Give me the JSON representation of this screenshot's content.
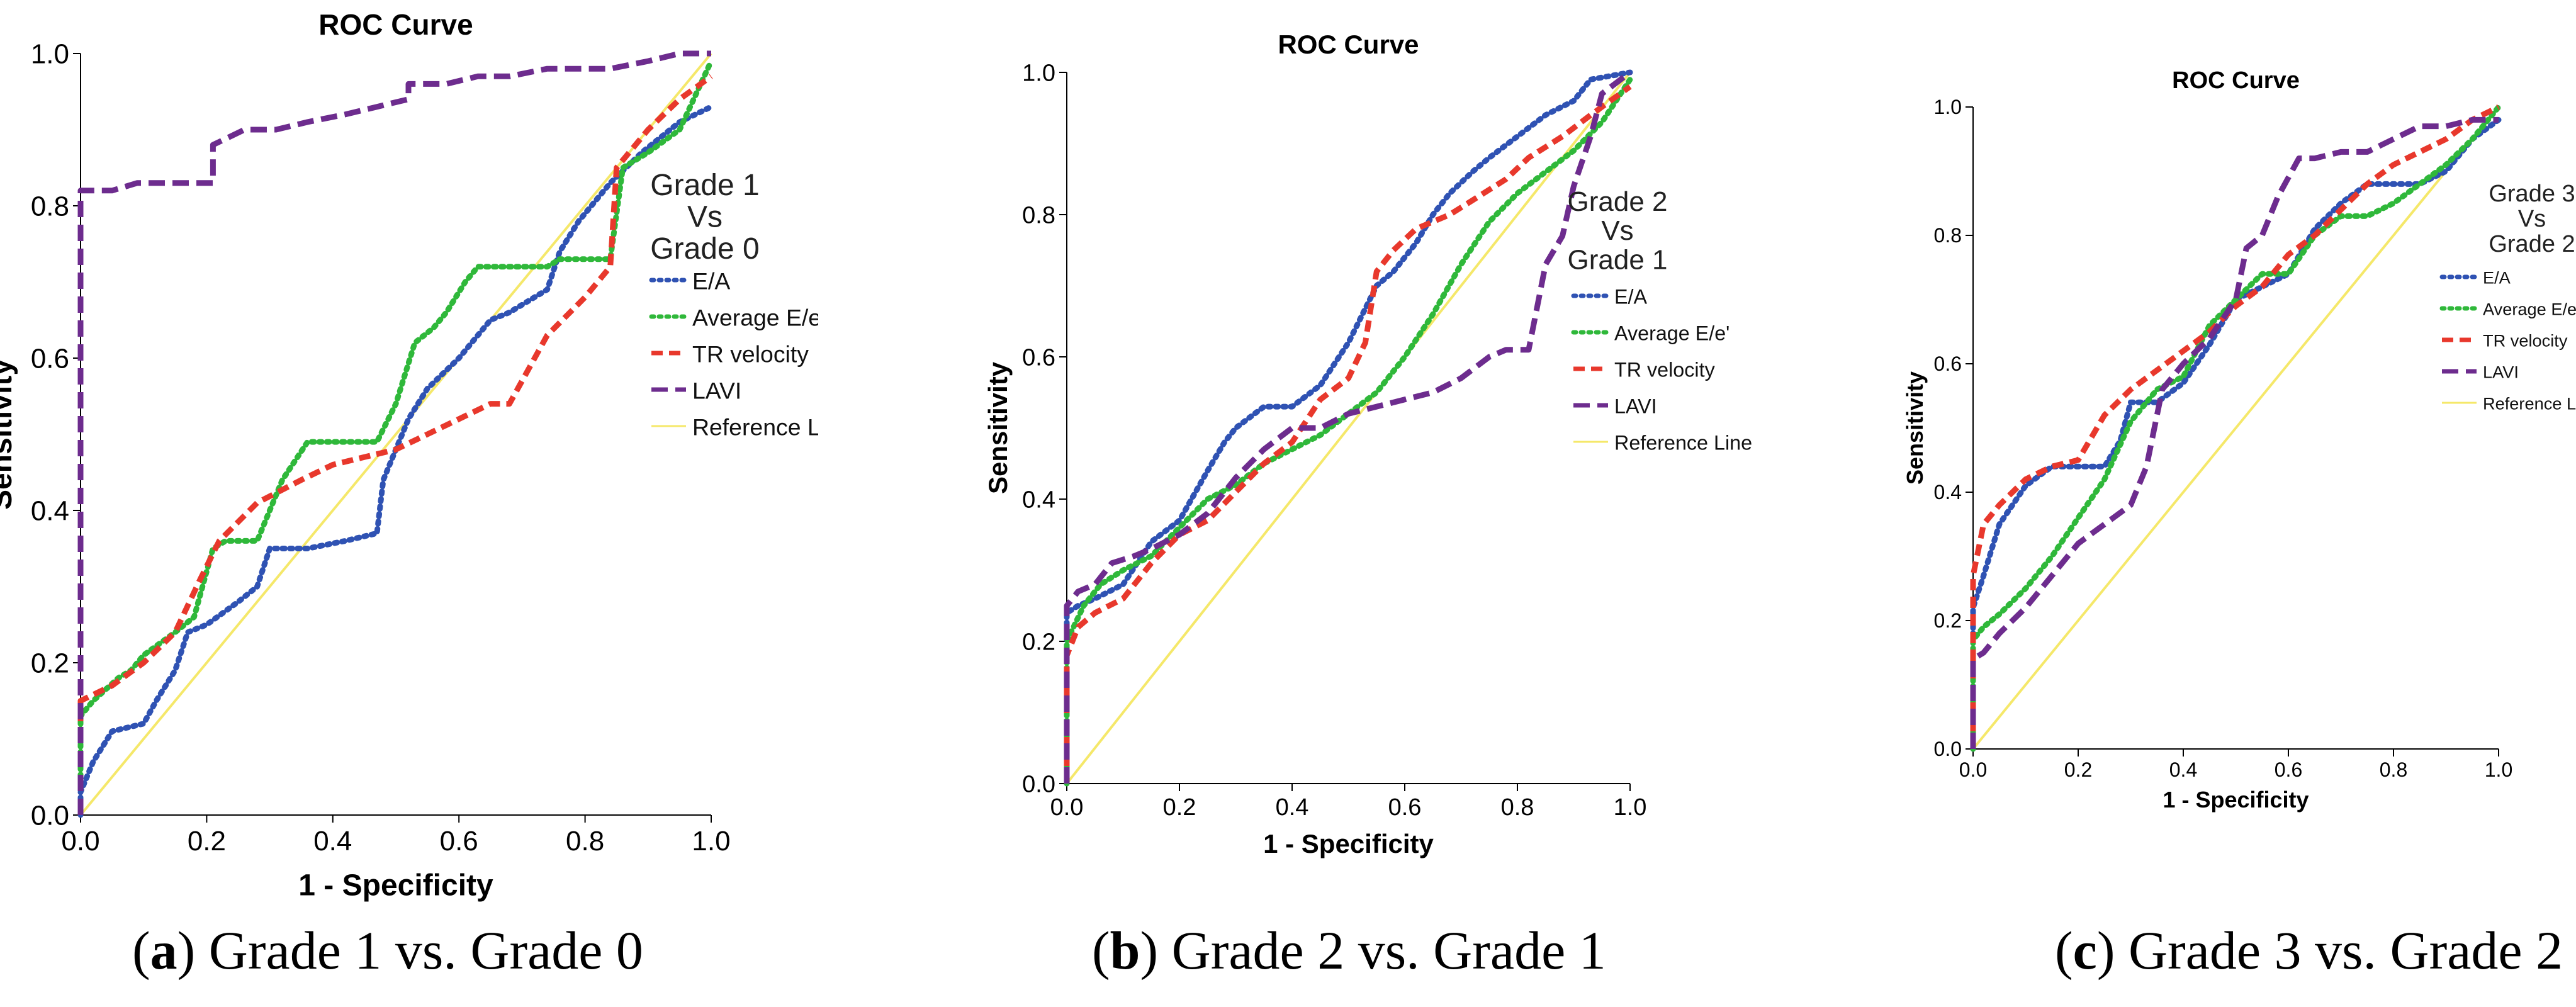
{
  "chart_data": [
    {
      "type": "line",
      "title": "ROC Curve",
      "xlabel": "1 - Specificity",
      "ylabel": "Sensitivity",
      "xlim": [
        0,
        1
      ],
      "ylim": [
        0,
        1
      ],
      "ticks": [
        "0.0",
        "0.2",
        "0.4",
        "0.6",
        "0.8",
        "1.0"
      ],
      "annotation": [
        "Grade 1",
        "Vs",
        "Grade 0"
      ],
      "legend_position": "right",
      "caption_letter": "a",
      "caption_text": ") Grade 1 vs. Grade 0",
      "series": [
        {
          "name": "E/A",
          "color": "#2f52b3",
          "dash": "dot",
          "x": [
            0,
            0,
            0.02,
            0.05,
            0.1,
            0.12,
            0.15,
            0.17,
            0.2,
            0.25,
            0.28,
            0.3,
            0.33,
            0.36,
            0.42,
            0.47,
            0.48,
            0.52,
            0.55,
            0.6,
            0.65,
            0.68,
            0.74,
            0.76,
            0.79,
            0.84,
            0.89,
            0.95,
            1.0
          ],
          "y": [
            0,
            0.03,
            0.07,
            0.11,
            0.12,
            0.15,
            0.19,
            0.24,
            0.25,
            0.28,
            0.3,
            0.35,
            0.35,
            0.35,
            0.36,
            0.37,
            0.44,
            0.52,
            0.56,
            0.6,
            0.65,
            0.66,
            0.69,
            0.74,
            0.78,
            0.83,
            0.87,
            0.91,
            0.93
          ]
        },
        {
          "name": "Average E/e'",
          "color": "#2fb83a",
          "dash": "dot",
          "x": [
            0,
            0,
            0.02,
            0.06,
            0.08,
            0.1,
            0.15,
            0.18,
            0.21,
            0.23,
            0.28,
            0.32,
            0.36,
            0.42,
            0.47,
            0.5,
            0.53,
            0.56,
            0.58,
            0.61,
            0.63,
            0.68,
            0.74,
            0.76,
            0.8,
            0.84,
            0.86,
            0.9,
            0.95,
            1.0
          ],
          "y": [
            0.05,
            0.13,
            0.15,
            0.18,
            0.19,
            0.21,
            0.24,
            0.26,
            0.35,
            0.36,
            0.36,
            0.44,
            0.49,
            0.49,
            0.49,
            0.54,
            0.62,
            0.64,
            0.66,
            0.7,
            0.72,
            0.72,
            0.72,
            0.73,
            0.73,
            0.73,
            0.85,
            0.87,
            0.9,
            0.99
          ]
        },
        {
          "name": "TR velocity",
          "color": "#e8382c",
          "dash": "dash",
          "x": [
            0,
            0,
            0.05,
            0.1,
            0.15,
            0.19,
            0.22,
            0.28,
            0.35,
            0.4,
            0.45,
            0.5,
            0.55,
            0.6,
            0.65,
            0.68,
            0.74,
            0.8,
            0.84,
            0.85,
            0.9,
            0.95,
            1.0
          ],
          "y": [
            0.1,
            0.15,
            0.17,
            0.2,
            0.24,
            0.31,
            0.36,
            0.41,
            0.44,
            0.46,
            0.47,
            0.48,
            0.5,
            0.52,
            0.54,
            0.54,
            0.63,
            0.68,
            0.72,
            0.85,
            0.9,
            0.94,
            0.97
          ]
        },
        {
          "name": "LAVI",
          "color": "#6d2c8e",
          "dash": "longdash",
          "x": [
            0,
            0,
            0.05,
            0.09,
            0.15,
            0.21,
            0.21,
            0.26,
            0.31,
            0.36,
            0.42,
            0.47,
            0.52,
            0.52,
            0.58,
            0.63,
            0.68,
            0.74,
            0.84,
            0.9,
            0.95,
            1.0
          ],
          "y": [
            0,
            0.82,
            0.82,
            0.83,
            0.83,
            0.83,
            0.88,
            0.9,
            0.9,
            0.91,
            0.92,
            0.93,
            0.94,
            0.96,
            0.96,
            0.97,
            0.97,
            0.98,
            0.98,
            0.99,
            1.0,
            1.0
          ]
        },
        {
          "name": "Reference Line",
          "color": "#f5e86a",
          "dash": "solid",
          "x": [
            0,
            1
          ],
          "y": [
            0,
            1
          ]
        }
      ]
    },
    {
      "type": "line",
      "title": "ROC Curve",
      "xlabel": "1 - Specificity",
      "ylabel": "Sensitivity",
      "xlim": [
        0,
        1
      ],
      "ylim": [
        0,
        1
      ],
      "ticks": [
        "0.0",
        "0.2",
        "0.4",
        "0.6",
        "0.8",
        "1.0"
      ],
      "annotation": [
        "Grade 2",
        "Vs",
        "Grade 1"
      ],
      "legend_position": "right",
      "caption_letter": "b",
      "caption_text": ") Grade 2 vs. Grade 1",
      "series": [
        {
          "name": "E/A",
          "color": "#2f52b3",
          "dash": "dot",
          "x": [
            0,
            0,
            0.02,
            0.05,
            0.1,
            0.15,
            0.2,
            0.25,
            0.28,
            0.3,
            0.35,
            0.38,
            0.4,
            0.45,
            0.5,
            0.55,
            0.58,
            0.62,
            0.65,
            0.68,
            0.72,
            0.75,
            0.8,
            0.85,
            0.9,
            0.93,
            1.0
          ],
          "y": [
            0,
            0.24,
            0.25,
            0.26,
            0.28,
            0.34,
            0.37,
            0.44,
            0.48,
            0.5,
            0.53,
            0.53,
            0.53,
            0.56,
            0.62,
            0.7,
            0.72,
            0.76,
            0.8,
            0.83,
            0.86,
            0.88,
            0.91,
            0.94,
            0.96,
            0.99,
            1.0
          ]
        },
        {
          "name": "Average E/e'",
          "color": "#2fb83a",
          "dash": "dot",
          "x": [
            0,
            0,
            0.03,
            0.06,
            0.1,
            0.15,
            0.2,
            0.25,
            0.3,
            0.35,
            0.4,
            0.45,
            0.5,
            0.55,
            0.6,
            0.65,
            0.7,
            0.75,
            0.8,
            0.85,
            0.9,
            0.95,
            1.0
          ],
          "y": [
            0,
            0.2,
            0.25,
            0.28,
            0.3,
            0.32,
            0.36,
            0.4,
            0.42,
            0.45,
            0.47,
            0.49,
            0.52,
            0.55,
            0.6,
            0.66,
            0.73,
            0.79,
            0.83,
            0.86,
            0.89,
            0.93,
            0.99
          ]
        },
        {
          "name": "TR velocity",
          "color": "#e8382c",
          "dash": "dash",
          "x": [
            0,
            0,
            0.02,
            0.05,
            0.1,
            0.15,
            0.2,
            0.25,
            0.3,
            0.35,
            0.4,
            0.45,
            0.5,
            0.53,
            0.55,
            0.58,
            0.62,
            0.68,
            0.72,
            0.78,
            0.82,
            0.88,
            0.93,
            1.0
          ],
          "y": [
            0,
            0.18,
            0.22,
            0.24,
            0.26,
            0.31,
            0.35,
            0.37,
            0.41,
            0.45,
            0.48,
            0.54,
            0.57,
            0.62,
            0.72,
            0.75,
            0.78,
            0.8,
            0.82,
            0.85,
            0.88,
            0.91,
            0.94,
            0.98
          ]
        },
        {
          "name": "LAVI",
          "color": "#6d2c8e",
          "dash": "longdash",
          "x": [
            0,
            0,
            0.02,
            0.05,
            0.08,
            0.12,
            0.15,
            0.2,
            0.25,
            0.3,
            0.35,
            0.4,
            0.45,
            0.5,
            0.55,
            0.6,
            0.65,
            0.7,
            0.75,
            0.78,
            0.82,
            0.85,
            0.88,
            0.9,
            0.93,
            0.95,
            1.0
          ],
          "y": [
            0,
            0.25,
            0.27,
            0.28,
            0.31,
            0.32,
            0.33,
            0.35,
            0.38,
            0.43,
            0.47,
            0.5,
            0.5,
            0.52,
            0.53,
            0.54,
            0.55,
            0.57,
            0.6,
            0.61,
            0.61,
            0.73,
            0.77,
            0.84,
            0.91,
            0.97,
            1.0
          ]
        },
        {
          "name": "Reference Line",
          "color": "#f5e86a",
          "dash": "solid",
          "x": [
            0,
            1
          ],
          "y": [
            0,
            1
          ]
        }
      ]
    },
    {
      "type": "line",
      "title": "ROC Curve",
      "xlabel": "1 - Specificity",
      "ylabel": "Sensitivity",
      "xlim": [
        0,
        1
      ],
      "ylim": [
        0,
        1
      ],
      "ticks": [
        "0.0",
        "0.2",
        "0.4",
        "0.6",
        "0.8",
        "1.0"
      ],
      "annotation": [
        "Grade 3",
        "Vs",
        "Grade 2"
      ],
      "legend_position": "right",
      "caption_letter": "c",
      "caption_text": ") Grade 3 vs. Grade 2",
      "series": [
        {
          "name": "E/A",
          "color": "#2f52b3",
          "dash": "dot",
          "x": [
            0,
            0,
            0.02,
            0.05,
            0.1,
            0.15,
            0.2,
            0.25,
            0.28,
            0.3,
            0.35,
            0.4,
            0.45,
            0.5,
            0.55,
            0.6,
            0.65,
            0.7,
            0.75,
            0.8,
            0.85,
            0.9,
            0.95,
            1.0
          ],
          "y": [
            0,
            0.22,
            0.27,
            0.35,
            0.41,
            0.44,
            0.44,
            0.44,
            0.48,
            0.54,
            0.54,
            0.57,
            0.63,
            0.7,
            0.72,
            0.74,
            0.81,
            0.85,
            0.88,
            0.88,
            0.88,
            0.9,
            0.95,
            0.98
          ]
        },
        {
          "name": "Average E/e'",
          "color": "#2fb83a",
          "dash": "dot",
          "x": [
            0,
            0,
            0.02,
            0.05,
            0.1,
            0.15,
            0.2,
            0.25,
            0.3,
            0.35,
            0.4,
            0.45,
            0.5,
            0.55,
            0.6,
            0.65,
            0.7,
            0.75,
            0.8,
            0.85,
            0.9,
            0.95,
            1.0
          ],
          "y": [
            0,
            0.17,
            0.19,
            0.21,
            0.25,
            0.3,
            0.36,
            0.42,
            0.51,
            0.56,
            0.58,
            0.66,
            0.7,
            0.74,
            0.74,
            0.8,
            0.83,
            0.83,
            0.85,
            0.88,
            0.91,
            0.95,
            1.0
          ]
        },
        {
          "name": "TR velocity",
          "color": "#e8382c",
          "dash": "dash",
          "x": [
            0,
            0,
            0.02,
            0.05,
            0.1,
            0.15,
            0.2,
            0.25,
            0.3,
            0.35,
            0.4,
            0.45,
            0.5,
            0.55,
            0.6,
            0.65,
            0.7,
            0.75,
            0.8,
            0.85,
            0.9,
            0.95,
            1.0
          ],
          "y": [
            0,
            0.27,
            0.35,
            0.38,
            0.42,
            0.44,
            0.45,
            0.52,
            0.56,
            0.59,
            0.62,
            0.65,
            0.69,
            0.72,
            0.77,
            0.8,
            0.84,
            0.88,
            0.91,
            0.93,
            0.95,
            0.98,
            1.0
          ]
        },
        {
          "name": "LAVI",
          "color": "#6d2c8e",
          "dash": "longdash",
          "x": [
            0,
            0,
            0.02,
            0.05,
            0.1,
            0.15,
            0.2,
            0.25,
            0.3,
            0.33,
            0.36,
            0.4,
            0.45,
            0.5,
            0.52,
            0.55,
            0.58,
            0.62,
            0.65,
            0.7,
            0.75,
            0.8,
            0.85,
            0.9,
            0.95,
            1.0
          ],
          "y": [
            0,
            0.14,
            0.15,
            0.18,
            0.22,
            0.27,
            0.32,
            0.35,
            0.38,
            0.44,
            0.56,
            0.6,
            0.64,
            0.7,
            0.78,
            0.8,
            0.86,
            0.92,
            0.92,
            0.93,
            0.93,
            0.95,
            0.97,
            0.97,
            0.98,
            0.98
          ]
        },
        {
          "name": "Reference Line",
          "color": "#f5e86a",
          "dash": "solid",
          "x": [
            0,
            1
          ],
          "y": [
            0,
            1
          ]
        }
      ]
    }
  ]
}
